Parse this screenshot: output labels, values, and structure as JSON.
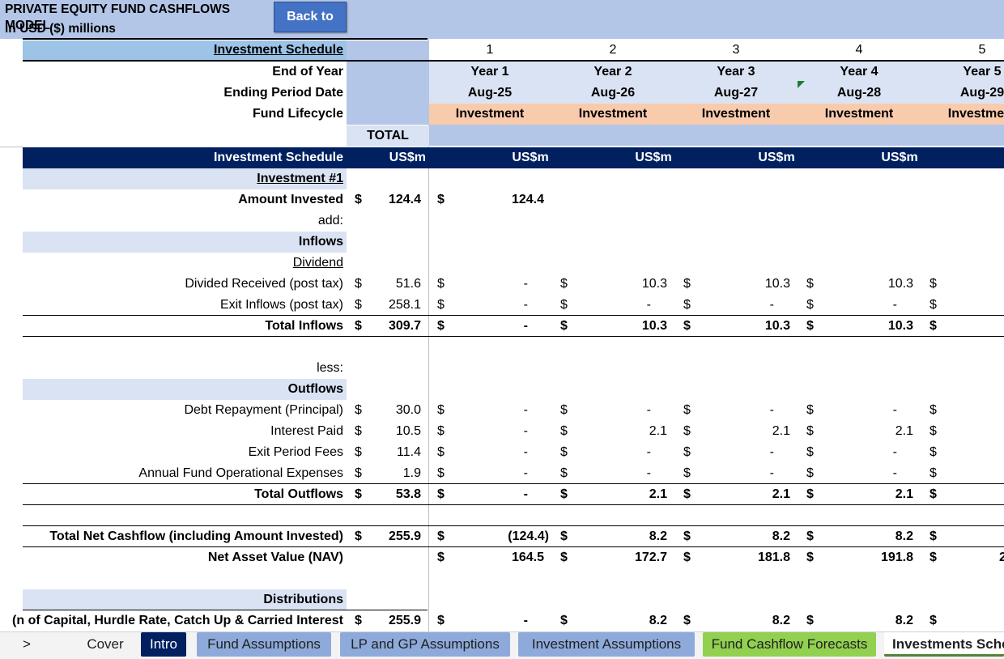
{
  "header": {
    "title": "PRIVATE EQUITY FUND CASHFLOWS MODEL",
    "subtitle": "in USD ($) millions",
    "back_button": "Back to"
  },
  "schedule": {
    "section_label": "Investment Schedule",
    "periods": [
      "1",
      "2",
      "3",
      "4",
      "5"
    ],
    "end_of_year_label": "End of Year",
    "years": [
      "Year 1",
      "Year 2",
      "Year 3",
      "Year 4",
      "Year 5"
    ],
    "ending_date_label": "Ending Period Date",
    "dates": [
      "Aug-25",
      "Aug-26",
      "Aug-27",
      "Aug-28",
      "Aug-29"
    ],
    "lifecycle_label": "Fund Lifecycle",
    "lifecycle": [
      "Investment",
      "Investment",
      "Investment",
      "Investment",
      "Investment"
    ],
    "total_label": "TOTAL",
    "units_row_label": "Investment Schedule",
    "unit": "US$m"
  },
  "rows": {
    "investment_header": "Investment #1",
    "amount_invested": {
      "label": "Amount Invested",
      "cur": "$",
      "total": "124.4",
      "values": [
        "124.4",
        "",
        "",
        "",
        ""
      ]
    },
    "add": "add:",
    "inflows_header": "Inflows",
    "dividend_header": "Dividend",
    "dividend_received": {
      "label": "Divided Received (post tax)",
      "cur": "$",
      "total": "51.6",
      "values": [
        "-",
        "10.3",
        "10.3",
        "10.3",
        ""
      ]
    },
    "exit_inflows": {
      "label": "Exit Inflows (post tax)",
      "cur": "$",
      "total": "258.1",
      "values": [
        "-",
        "-",
        "-",
        "-",
        ""
      ]
    },
    "total_inflows": {
      "label": "Total Inflows",
      "cur": "$",
      "total": "309.7",
      "values": [
        "-",
        "10.3",
        "10.3",
        "10.3",
        ""
      ]
    },
    "less": "less:",
    "outflows_header": "Outflows",
    "debt_repayment": {
      "label": "Debt Repayment (Principal)",
      "cur": "$",
      "total": "30.0",
      "values": [
        "-",
        "-",
        "-",
        "-",
        ""
      ]
    },
    "interest_paid": {
      "label": "Interest Paid",
      "cur": "$",
      "total": "10.5",
      "values": [
        "-",
        "2.1",
        "2.1",
        "2.1",
        ""
      ]
    },
    "exit_fees": {
      "label": "Exit Period Fees",
      "cur": "$",
      "total": "11.4",
      "values": [
        "-",
        "-",
        "-",
        "-",
        ""
      ]
    },
    "opex": {
      "label": "Annual Fund Operational Expenses",
      "cur": "$",
      "total": "1.9",
      "values": [
        "-",
        "-",
        "-",
        "-",
        ""
      ]
    },
    "total_outflows": {
      "label": "Total Outflows",
      "cur": "$",
      "total": "53.8",
      "values": [
        "-",
        "2.1",
        "2.1",
        "2.1",
        ""
      ]
    },
    "net_cashflow": {
      "label": "Total Net Cashflow (including Amount Invested)",
      "cur": "$",
      "total": "255.9",
      "values": [
        "(124.4)",
        "8.2",
        "8.2",
        "8.2",
        ""
      ]
    },
    "nav": {
      "label": "Net Asset Value (NAV)",
      "cur": "",
      "total": "",
      "values": [
        "164.5",
        "172.7",
        "181.8",
        "191.8",
        "2"
      ]
    },
    "distributions_header": "Distributions",
    "distributions": {
      "label": "n of Capital, Hurdle Rate, Catch Up & Carried Interest)",
      "cur": "$",
      "total": "255.9",
      "values": [
        "-",
        "8.2",
        "8.2",
        "8.2",
        ""
      ]
    }
  },
  "tabs": {
    "nav_arrow": ">",
    "items": [
      "Cover",
      "Intro",
      "Fund Assumptions",
      "LP and GP Assumptions",
      "Investment Assumptions",
      "Fund Cashflow Forecasts",
      "Investments Sche"
    ]
  }
}
